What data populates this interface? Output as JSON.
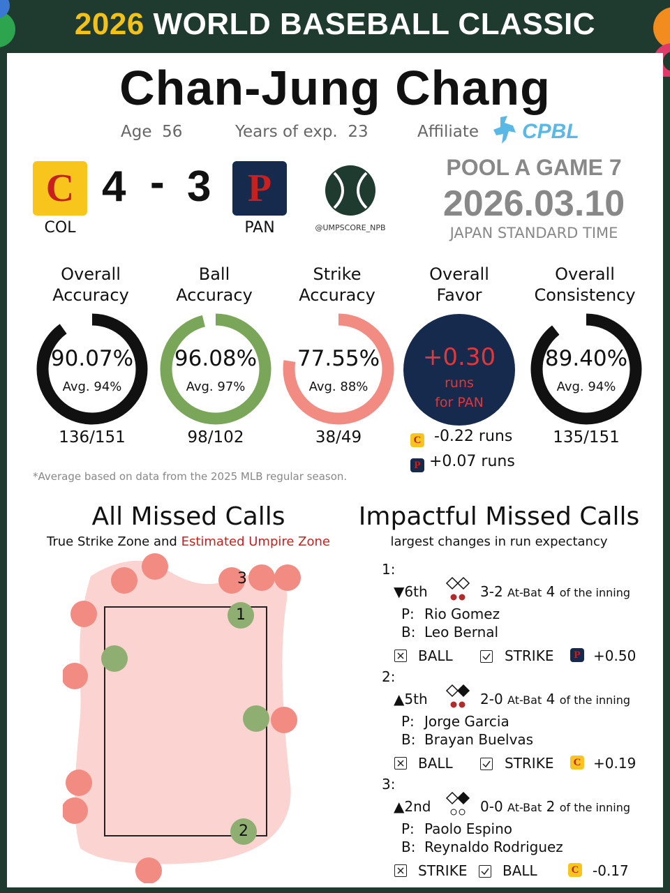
{
  "header": {
    "year": "2026",
    "title": "WORLD BASEBALL CLASSIC"
  },
  "umpire": {
    "name": "Chan-Jung Chang",
    "age_label": "Age",
    "age": "56",
    "exp_label": "Years of exp.",
    "exp": "23",
    "affiliate_label": "Affiliate",
    "affiliate": "CPBL"
  },
  "game": {
    "home": {
      "code": "COL",
      "logo_letter": "C",
      "score": "4"
    },
    "away": {
      "code": "PAN",
      "logo_letter": "P",
      "score": "3"
    },
    "dash": "-",
    "handle": "@UMPSCORE_NPB",
    "pool": "POOL A GAME 7",
    "date": "2026.03.10",
    "timezone": "JAPAN STANDARD TIME"
  },
  "metrics": [
    {
      "title1": "Overall",
      "title2": "Accuracy",
      "value": "90.07%",
      "avg": "Avg. 94%",
      "count": "136/151",
      "fraction": 0.9007,
      "color": "#111111"
    },
    {
      "title1": "Ball",
      "title2": "Accuracy",
      "value": "96.08%",
      "avg": "Avg. 97%",
      "count": "98/102",
      "fraction": 0.9608,
      "color": "#7aa65a"
    },
    {
      "title1": "Strike",
      "title2": "Accuracy",
      "value": "77.55%",
      "avg": "Avg. 88%",
      "count": "38/49",
      "fraction": 0.7755,
      "color": "#f28b82"
    },
    {
      "title1": "Overall",
      "title2": "Consistency",
      "value": "89.40%",
      "avg": "Avg. 94%",
      "count": "135/151",
      "fraction": 0.894,
      "color": "#111111"
    }
  ],
  "favor": {
    "title1": "Overall",
    "title2": "Favor",
    "value": "+0.30",
    "line2": "runs",
    "line3": "for PAN",
    "col_runs": "-0.22 runs",
    "pan_runs": "+0.07 runs"
  },
  "footnote": "*Average based on data from the 2025 MLB regular season.",
  "missed": {
    "title": "All Missed Calls",
    "sub1": "True Strike Zone and",
    "sub2": "Estimated Umpire Zone",
    "labels": [
      "1",
      "2",
      "3"
    ]
  },
  "impact": {
    "title": "Impactful Missed Calls",
    "sub": "largest changes in run expectancy",
    "calls": [
      {
        "num": "1:",
        "inning": "▼6th",
        "count": "3-2",
        "atbat_label": "At-Bat",
        "atbat": "4",
        "suffix": "of the inning",
        "p_label": "P:",
        "pitcher": "Rio Gomez",
        "b_label": "B:",
        "batter": "Leo Bernal",
        "wrong": "BALL",
        "right": "STRIKE",
        "team": "P",
        "delta": "+0.50"
      },
      {
        "num": "2:",
        "inning": "▲5th",
        "count": "2-0",
        "atbat_label": "At-Bat",
        "atbat": "4",
        "suffix": "of the inning",
        "p_label": "P:",
        "pitcher": "Jorge Garcia",
        "b_label": "B:",
        "batter": "Brayan Buelvas",
        "wrong": "BALL",
        "right": "STRIKE",
        "team": "C",
        "delta": "+0.19"
      },
      {
        "num": "3:",
        "inning": "▲2nd",
        "count": "0-0",
        "atbat_label": "At-Bat",
        "atbat": "2",
        "suffix": "of the inning",
        "p_label": "P:",
        "pitcher": "Paolo Espino",
        "b_label": "B:",
        "batter": "Reynaldo Rodriguez",
        "wrong": "STRIKE",
        "right": "BALL",
        "team": "C",
        "delta": "-0.17"
      }
    ]
  },
  "colors": {
    "dark_green": "#1f3a2e",
    "yellow": "#f2c21b",
    "red": "#c8201f",
    "navy": "#152a4c",
    "pink": "#f28b82",
    "green": "#7aa65a"
  }
}
